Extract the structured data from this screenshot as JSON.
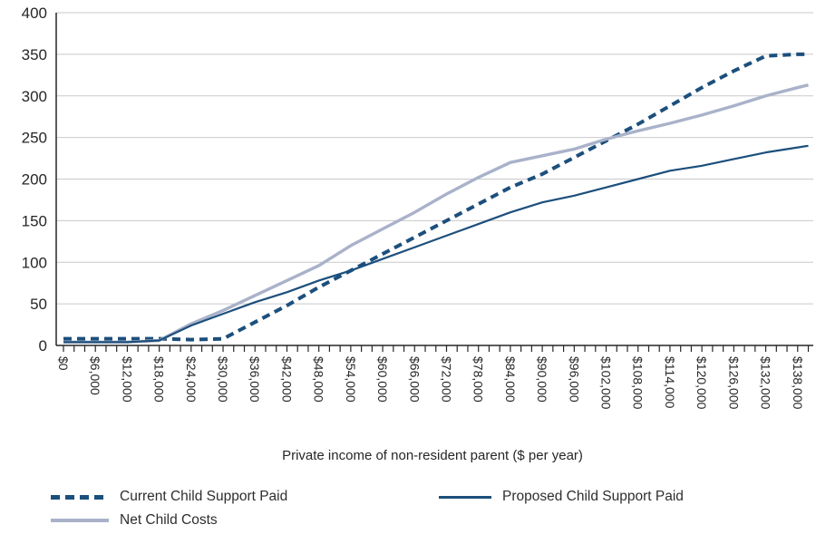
{
  "chart_data": {
    "type": "line",
    "title": "",
    "xlabel": "Private income of non-resident parent ($ per year)",
    "ylabel": "",
    "ylim": [
      0,
      400
    ],
    "xlim": [
      0,
      140000
    ],
    "grid": "horizontal-gridlines-on",
    "legend_position": "bottom",
    "y_ticks": [
      0,
      50,
      100,
      150,
      200,
      250,
      300,
      350,
      400
    ],
    "y_tick_labels": [
      "0",
      "50",
      "100",
      "150",
      "200",
      "250",
      "300",
      "350",
      "400"
    ],
    "x_minor_tick_step": 2000,
    "x_label_step": 6000,
    "x_tick_labels": [
      "$0",
      "$6,000",
      "$12,000",
      "$18,000",
      "$24,000",
      "$30,000",
      "$36,000",
      "$42,000",
      "$48,000",
      "$54,000",
      "$60,000",
      "$66,000",
      "$72,000",
      "$78,000",
      "$84,000",
      "$90,000",
      "$96,000",
      "$102,000",
      "$108,000",
      "$114,000",
      "$120,000",
      "$126,000",
      "$132,000",
      "$138,000"
    ],
    "x": [
      0,
      6000,
      12000,
      18000,
      24000,
      30000,
      36000,
      42000,
      48000,
      54000,
      60000,
      66000,
      72000,
      78000,
      84000,
      90000,
      96000,
      102000,
      108000,
      114000,
      120000,
      126000,
      132000,
      138000,
      140000
    ],
    "series": [
      {
        "name": "Current Child Support Paid",
        "color": "#1c4f7c",
        "style": "dashed",
        "width": 4,
        "values": [
          8,
          8,
          8,
          8,
          7,
          8,
          28,
          48,
          70,
          90,
          110,
          130,
          150,
          170,
          190,
          206,
          226,
          246,
          266,
          288,
          310,
          330,
          348,
          350,
          350
        ]
      },
      {
        "name": "Net Child Costs",
        "color": "#a9b2c9",
        "style": "solid",
        "width": 3.4,
        "values": [
          4,
          4,
          4,
          6,
          26,
          42,
          60,
          78,
          96,
          120,
          140,
          160,
          182,
          202,
          220,
          228,
          236,
          248,
          258,
          267,
          277,
          288,
          300,
          310,
          313
        ]
      },
      {
        "name": "Proposed Child Support Paid",
        "color": "#1c4f7c",
        "style": "solid",
        "width": 2.2,
        "values": [
          4,
          4,
          4,
          6,
          24,
          38,
          52,
          64,
          78,
          90,
          104,
          118,
          132,
          146,
          160,
          172,
          180,
          190,
          200,
          210,
          216,
          224,
          232,
          238,
          240
        ]
      }
    ],
    "axis_color": "#262626",
    "gridline_color": "#c9c9c9",
    "text_color": "#262626"
  },
  "legend": {
    "items": [
      {
        "label": "Current Child Support Paid",
        "series_index": 0
      },
      {
        "label": "Proposed Child Support Paid",
        "series_index": 2
      },
      {
        "label": "Net Child Costs",
        "series_index": 1
      }
    ]
  }
}
